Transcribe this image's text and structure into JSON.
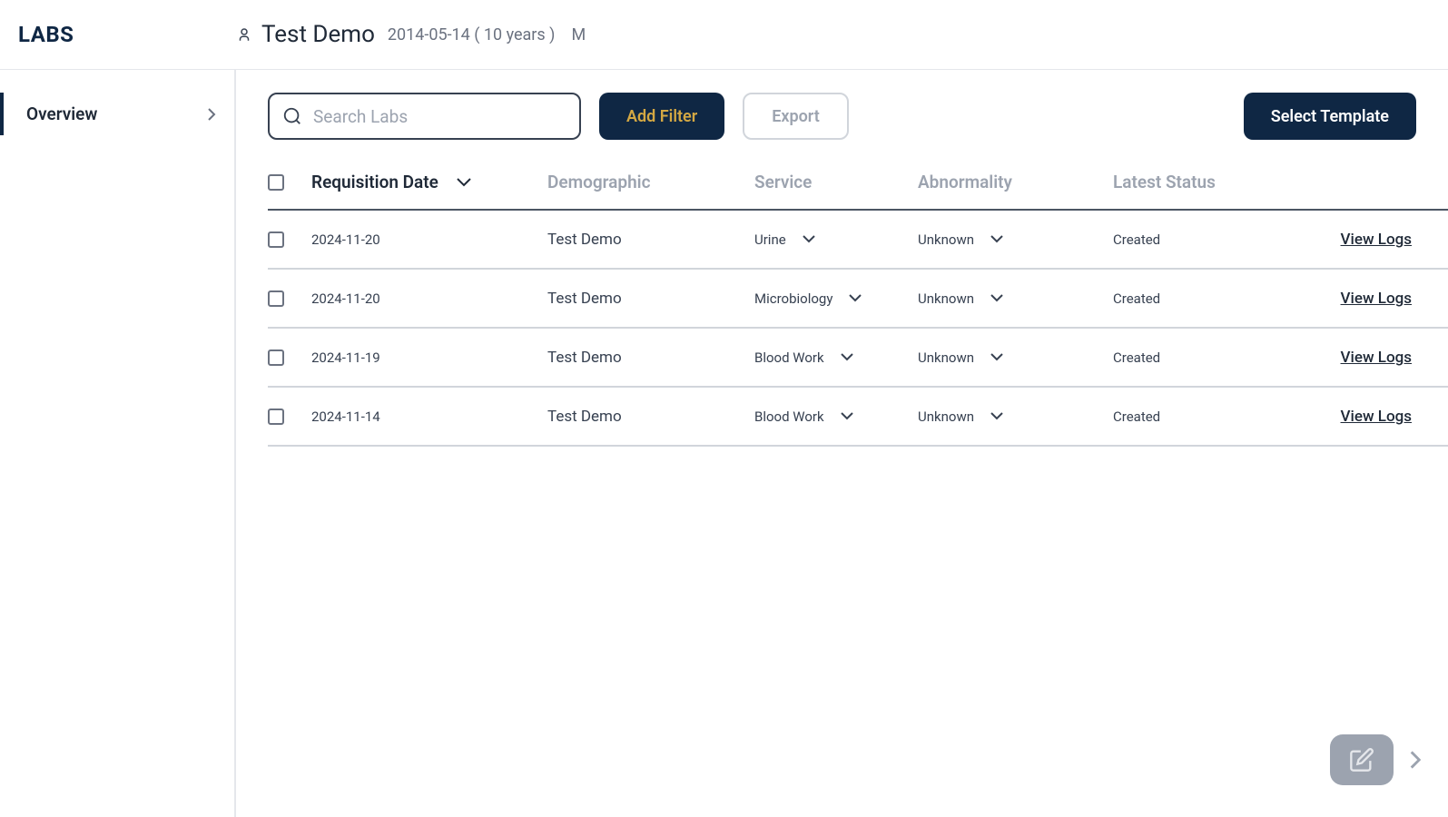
{
  "header": {
    "brand": "LABS",
    "patient_name": "Test Demo",
    "patient_dob": "2014-05-14 ( 10 years )",
    "patient_sex": "M"
  },
  "sidebar": {
    "overview_label": "Overview"
  },
  "toolbar": {
    "search_placeholder": "Search Labs",
    "add_filter_label": "Add Filter",
    "export_label": "Export",
    "select_template_label": "Select Template"
  },
  "table": {
    "headers": {
      "requisition_date": "Requisition Date",
      "demographic": "Demographic",
      "service": "Service",
      "abnormality": "Abnormality",
      "latest_status": "Latest Status"
    },
    "rows": [
      {
        "date": "2024-11-20",
        "demographic": "Test Demo",
        "service": "Urine",
        "abnormality": "Unknown",
        "status": "Created",
        "logs_label": "View Logs"
      },
      {
        "date": "2024-11-20",
        "demographic": "Test Demo",
        "service": "Microbiology",
        "abnormality": "Unknown",
        "status": "Created",
        "logs_label": "View Logs"
      },
      {
        "date": "2024-11-19",
        "demographic": "Test Demo",
        "service": "Blood Work",
        "abnormality": "Unknown",
        "status": "Created",
        "logs_label": "View Logs"
      },
      {
        "date": "2024-11-14",
        "demographic": "Test Demo",
        "service": "Blood Work",
        "abnormality": "Unknown",
        "status": "Created",
        "logs_label": "View Logs"
      }
    ]
  },
  "colors": {
    "primary_dark": "#0f2744",
    "accent_gold": "#d4a843",
    "text_dark": "#1f2937",
    "text_muted": "#9ca3af",
    "border": "#e5e7eb"
  }
}
